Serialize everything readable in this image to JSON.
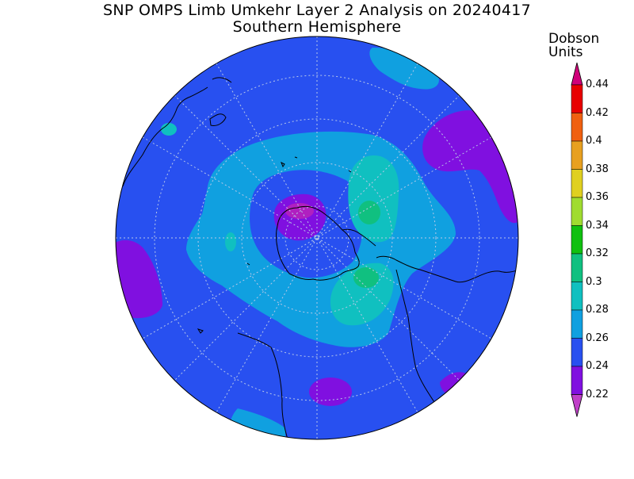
{
  "title": "SNP OMPS Limb Umkehr Layer 2 Analysis on 20240417",
  "subtitle": "Southern Hemisphere",
  "units_line1": "Dobson",
  "units_line2": "Units",
  "colorbar": {
    "levels": [
      {
        "label": "0.44",
        "color": "#d0007a"
      },
      {
        "label": "0.42",
        "color": "#e80000"
      },
      {
        "label": "0.4",
        "color": "#f06010"
      },
      {
        "label": "0.38",
        "color": "#e8a020"
      },
      {
        "label": "0.36",
        "color": "#e0d020"
      },
      {
        "label": "0.34",
        "color": "#a0dc30"
      },
      {
        "label": "0.32",
        "color": "#10c010"
      },
      {
        "label": "0.3",
        "color": "#10c080"
      },
      {
        "label": "0.28",
        "color": "#10c0c0"
      },
      {
        "label": "0.26",
        "color": "#10a0e0"
      },
      {
        "label": "0.24",
        "color": "#2850f0"
      },
      {
        "label": "0.22",
        "color": "#8010e0"
      }
    ],
    "overflow_color": "#d0007a",
    "underflow_color": "#c040c8"
  }
}
